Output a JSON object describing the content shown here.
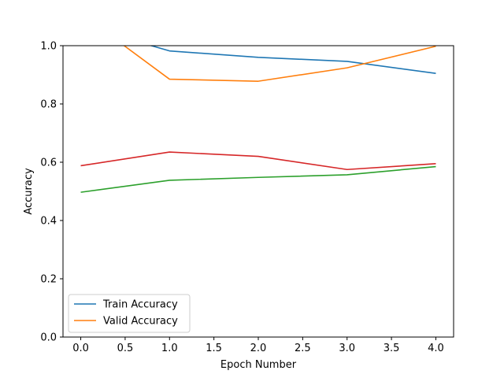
{
  "chart_data": {
    "type": "line",
    "title": "",
    "xlabel": "Epoch Number",
    "ylabel": "Accuracy",
    "xlim": [
      -0.2,
      4.2
    ],
    "ylim": [
      0.0,
      1.0
    ],
    "x_ticks": [
      "0.0",
      "0.5",
      "1.0",
      "1.5",
      "2.0",
      "2.5",
      "3.0",
      "3.5",
      "4.0"
    ],
    "y_ticks": [
      "0.0",
      "0.2",
      "0.4",
      "0.6",
      "0.8",
      "1.0"
    ],
    "grid": false,
    "legend_position": "lower-left",
    "x": [
      0,
      1,
      2,
      3,
      4
    ],
    "series": [
      {
        "name": "Train Accuracy",
        "color": "#1f77b4",
        "in_legend": true,
        "values": [
          1.07,
          0.982,
          0.96,
          0.946,
          0.905
        ]
      },
      {
        "name": "Valid Accuracy",
        "color": "#ff7f0e",
        "in_legend": true,
        "values": [
          1.11,
          0.885,
          0.878,
          0.924,
          0.998
        ]
      },
      {
        "color": "#d62728",
        "in_legend": false,
        "values": [
          0.588,
          0.635,
          0.62,
          0.575,
          0.595
        ]
      },
      {
        "color": "#2ca02c",
        "in_legend": false,
        "values": [
          0.497,
          0.538,
          0.548,
          0.557,
          0.585
        ]
      }
    ]
  }
}
